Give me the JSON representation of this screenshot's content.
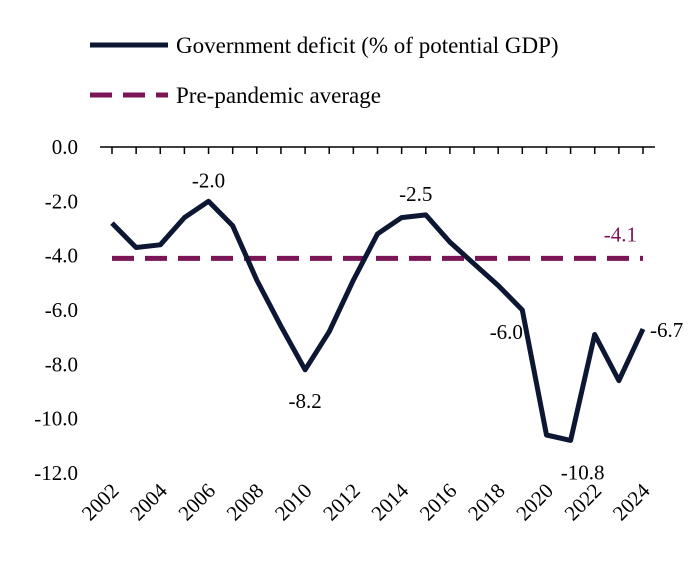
{
  "chart_data": {
    "type": "line",
    "legend": {
      "placement": "top-left"
    },
    "grid": false,
    "x": [
      2002,
      2003,
      2004,
      2005,
      2006,
      2007,
      2008,
      2009,
      2010,
      2011,
      2012,
      2013,
      2014,
      2015,
      2016,
      2017,
      2018,
      2019,
      2020,
      2021,
      2022,
      2023,
      2024
    ],
    "ylim": [
      -12.0,
      0.0
    ],
    "y_ticks": [
      "0.0",
      "-2.0",
      "-4.0",
      "-6.0",
      "-8.0",
      "-10.0",
      "-12.0"
    ],
    "x_ticks": [
      "2002",
      "2004",
      "2006",
      "2008",
      "2010",
      "2012",
      "2014",
      "2016",
      "2018",
      "2020",
      "2022",
      "2024"
    ],
    "series": [
      {
        "name": "Government deficit (% of potential GDP)",
        "color": "#0d1733",
        "style": "solid",
        "values": [
          -2.8,
          -3.7,
          -3.6,
          -2.6,
          -2.0,
          -2.9,
          -4.9,
          -6.6,
          -8.2,
          -6.8,
          -4.9,
          -3.2,
          -2.6,
          -2.5,
          -3.5,
          -4.3,
          -5.1,
          -6.0,
          -10.6,
          -10.8,
          -6.9,
          -8.6,
          -6.7
        ]
      },
      {
        "name": "Pre-pandemic average",
        "color": "#7b1555",
        "style": "dashed",
        "values": [
          -4.1,
          -4.1,
          -4.1,
          -4.1,
          -4.1,
          -4.1,
          -4.1,
          -4.1,
          -4.1,
          -4.1,
          -4.1,
          -4.1,
          -4.1,
          -4.1,
          -4.1,
          -4.1,
          -4.1,
          -4.1,
          -4.1,
          -4.1,
          -4.1,
          -4.1,
          -4.1
        ]
      }
    ],
    "annotations": [
      {
        "text": "-2.0",
        "x": 2006,
        "y": -2.0,
        "series": 0
      },
      {
        "text": "-8.2",
        "x": 2010,
        "y": -8.2,
        "series": 0
      },
      {
        "text": "-2.5",
        "x": 2015,
        "y": -2.5,
        "series": 0
      },
      {
        "text": "-6.0",
        "x": 2019,
        "y": -6.0,
        "series": 0
      },
      {
        "text": "-10.8",
        "x": 2021,
        "y": -10.8,
        "series": 0
      },
      {
        "text": "-6.7",
        "x": 2024,
        "y": -6.7,
        "series": 0
      },
      {
        "text": "-4.1",
        "x": 2024,
        "y": -4.1,
        "series": 1
      }
    ]
  }
}
